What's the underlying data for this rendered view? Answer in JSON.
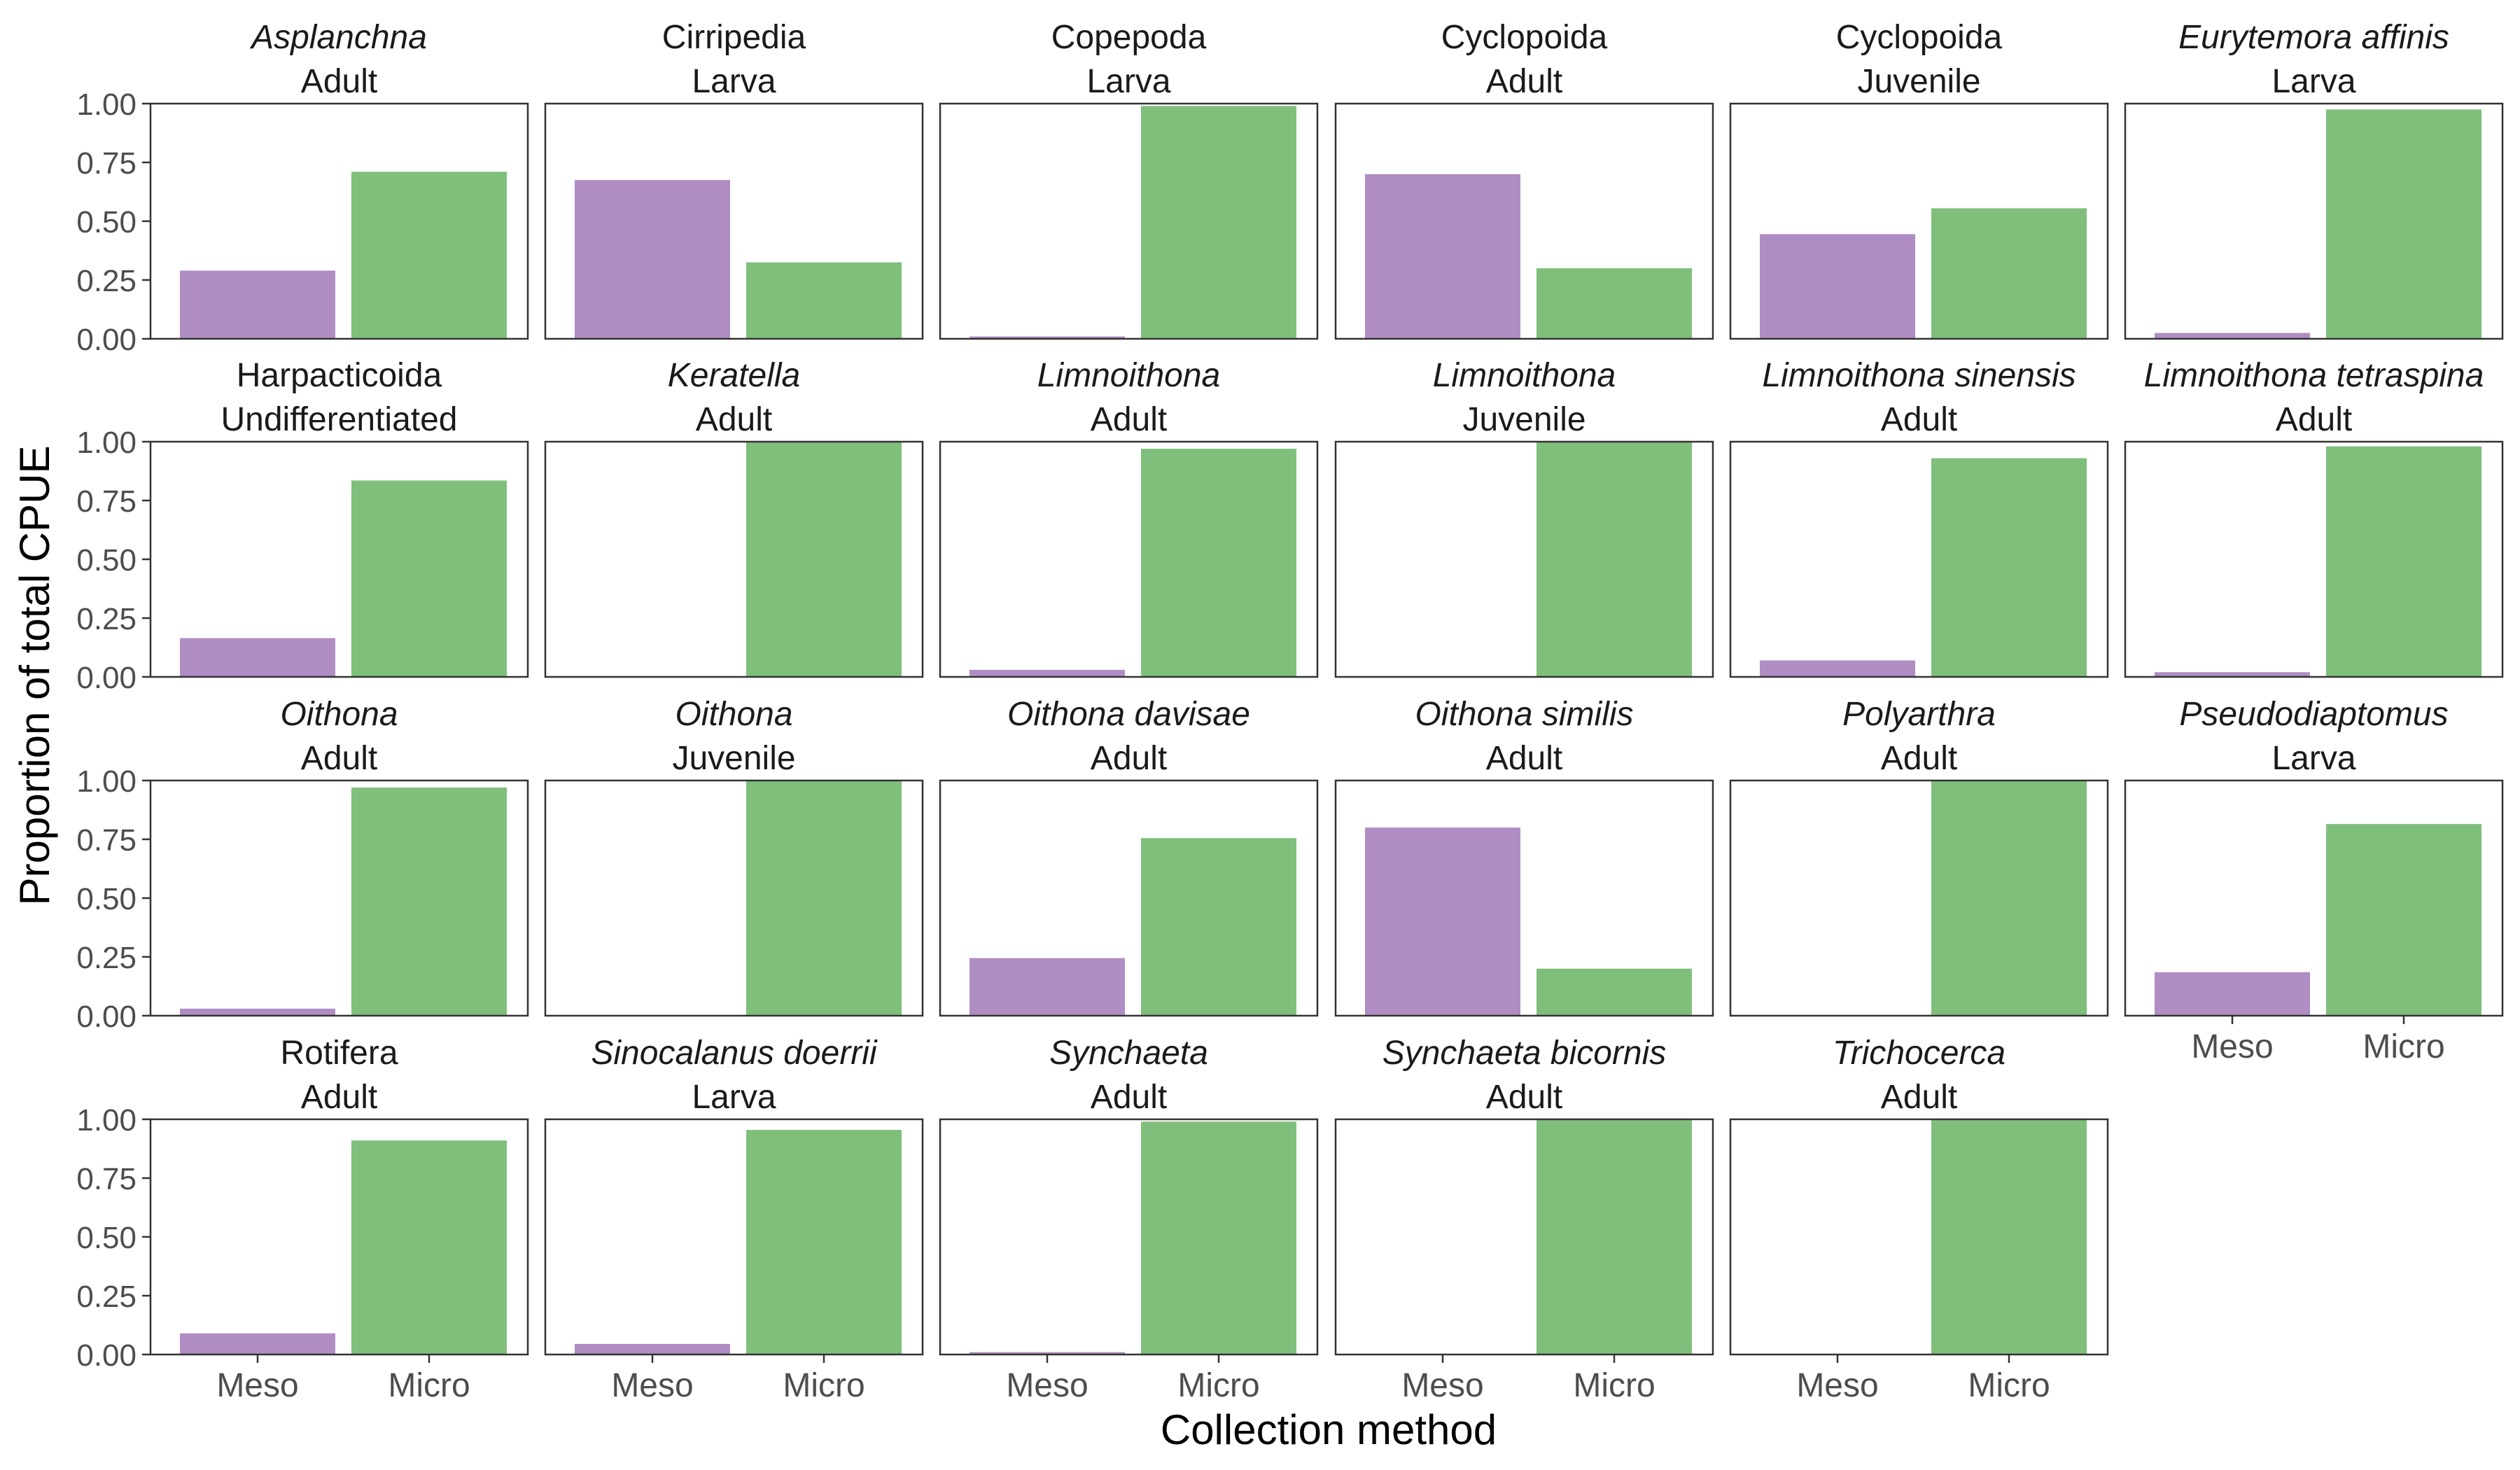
{
  "figure": {
    "ylabel": "Proportion of total CPUE",
    "xlabel": "Collection method"
  },
  "colors": {
    "Meso": "#af8dc3",
    "Micro": "#7fbf7b"
  },
  "chart_data": {
    "type": "bar",
    "categories": [
      "Meso",
      "Micro"
    ],
    "ylim": [
      0,
      1
    ],
    "yticks": [
      "0.00",
      "0.25",
      "0.50",
      "0.75",
      "1.00"
    ],
    "grid": false,
    "facets": [
      {
        "taxon": "Asplanchna",
        "italic": true,
        "stage": "Adult",
        "values": [
          0.29,
          0.71
        ]
      },
      {
        "taxon": "Cirripedia",
        "italic": false,
        "stage": "Larva",
        "values": [
          0.675,
          0.325
        ]
      },
      {
        "taxon": "Copepoda",
        "italic": false,
        "stage": "Larva",
        "values": [
          0.01,
          0.99
        ]
      },
      {
        "taxon": "Cyclopoida",
        "italic": false,
        "stage": "Adult",
        "values": [
          0.7,
          0.3
        ]
      },
      {
        "taxon": "Cyclopoida",
        "italic": false,
        "stage": "Juvenile",
        "values": [
          0.445,
          0.555
        ]
      },
      {
        "taxon": "Eurytemora affinis",
        "italic": true,
        "stage": "Larva",
        "values": [
          0.025,
          0.975
        ]
      },
      {
        "taxon": "Harpacticoida",
        "italic": false,
        "stage": "Undifferentiated",
        "values": [
          0.165,
          0.835
        ]
      },
      {
        "taxon": "Keratella",
        "italic": true,
        "stage": "Adult",
        "values": [
          0.0,
          1.0
        ]
      },
      {
        "taxon": "Limnoithona",
        "italic": true,
        "stage": "Adult",
        "values": [
          0.03,
          0.97
        ]
      },
      {
        "taxon": "Limnoithona",
        "italic": true,
        "stage": "Juvenile",
        "values": [
          0.0,
          1.0
        ]
      },
      {
        "taxon": "Limnoithona sinensis",
        "italic": true,
        "stage": "Adult",
        "values": [
          0.07,
          0.93
        ]
      },
      {
        "taxon": "Limnoithona tetraspina",
        "italic": true,
        "stage": "Adult",
        "values": [
          0.02,
          0.98
        ]
      },
      {
        "taxon": "Oithona",
        "italic": true,
        "stage": "Adult",
        "values": [
          0.03,
          0.97
        ]
      },
      {
        "taxon": "Oithona",
        "italic": true,
        "stage": "Juvenile",
        "values": [
          0.0,
          1.0
        ]
      },
      {
        "taxon": "Oithona davisae",
        "italic": true,
        "stage": "Adult",
        "values": [
          0.245,
          0.755
        ]
      },
      {
        "taxon": "Oithona similis",
        "italic": true,
        "stage": "Adult",
        "values": [
          0.8,
          0.2
        ]
      },
      {
        "taxon": "Polyarthra",
        "italic": true,
        "stage": "Adult",
        "values": [
          0.0,
          1.0
        ]
      },
      {
        "taxon": "Pseudodiaptomus",
        "italic": true,
        "stage": "Larva",
        "values": [
          0.185,
          0.815
        ]
      },
      {
        "taxon": "Rotifera",
        "italic": false,
        "stage": "Adult",
        "values": [
          0.09,
          0.91
        ]
      },
      {
        "taxon": "Sinocalanus doerrii",
        "italic": true,
        "stage": "Larva",
        "values": [
          0.045,
          0.955
        ]
      },
      {
        "taxon": "Synchaeta",
        "italic": true,
        "stage": "Adult",
        "values": [
          0.01,
          0.99
        ]
      },
      {
        "taxon": "Synchaeta bicornis",
        "italic": true,
        "stage": "Adult",
        "values": [
          0.0,
          1.0
        ]
      },
      {
        "taxon": "Trichocerca",
        "italic": true,
        "stage": "Adult",
        "values": [
          0.0,
          1.0
        ]
      }
    ]
  }
}
